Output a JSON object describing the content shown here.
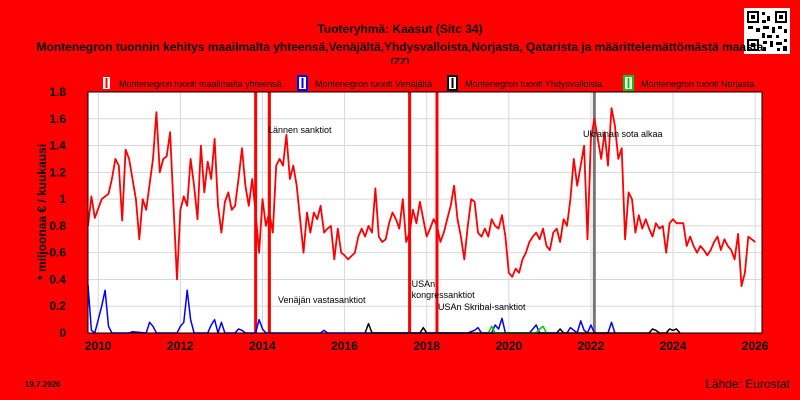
{
  "title": "Tuoteryhmä: Kaasut (Sitc 34)",
  "subtitle": "Montenegron tuonnin kehitys maailmalta yhteensä,Venäjältä,Yhdysvalloista,Norjasta, Qatarista ja määrittelemättömästä maasta",
  "subtitle_cont": "(ZZ)",
  "date": "19.7.2026",
  "source": "Lähde: Eurostat",
  "colors": {
    "background": "#ff0000",
    "plot": "#ffffff",
    "grid": "#d8d8d8"
  },
  "chart_data": {
    "type": "line",
    "ylabel": "* miljoonaa € / kuukausi",
    "xlabel": "",
    "ylim": [
      0,
      1.8
    ],
    "xlim": [
      "2009-10",
      "2026-03"
    ],
    "yticks": [
      "0",
      "0.2",
      "0.4",
      "0.6",
      "0.8",
      "1",
      "1.2",
      "1.4",
      "1.6",
      "1.8"
    ],
    "xticks": [
      "2010",
      "2012",
      "2014",
      "2016",
      "2018",
      "2020",
      "2022",
      "2024",
      "2026"
    ],
    "grid": true,
    "legend_position": "top",
    "series": [
      {
        "name": "Montenegron tuonti maailmalta yhteensä",
        "color": "#ff0000",
        "points": [
          [
            "2009-10",
            0.8
          ],
          [
            "2009-11",
            1.02
          ],
          [
            "2009-12",
            0.86
          ],
          [
            "2010-02",
            1.0
          ],
          [
            "2010-04",
            1.04
          ],
          [
            "2010-05",
            1.15
          ],
          [
            "2010-06",
            1.3
          ],
          [
            "2010-07",
            1.25
          ],
          [
            "2010-08",
            0.84
          ],
          [
            "2010-09",
            1.37
          ],
          [
            "2010-10",
            1.3
          ],
          [
            "2010-12",
            1.0
          ],
          [
            "2011-01",
            0.7
          ],
          [
            "2011-02",
            1.0
          ],
          [
            "2011-03",
            0.92
          ],
          [
            "2011-05",
            1.3
          ],
          [
            "2011-06",
            1.65
          ],
          [
            "2011-07",
            1.2
          ],
          [
            "2011-08",
            1.3
          ],
          [
            "2011-09",
            1.32
          ],
          [
            "2011-10",
            1.5
          ],
          [
            "2011-11",
            0.95
          ],
          [
            "2011-12",
            0.4
          ],
          [
            "2012-01",
            0.92
          ],
          [
            "2012-02",
            1.02
          ],
          [
            "2012-03",
            0.95
          ],
          [
            "2012-04",
            1.3
          ],
          [
            "2012-05",
            1.1
          ],
          [
            "2012-06",
            0.85
          ],
          [
            "2012-07",
            1.4
          ],
          [
            "2012-08",
            1.05
          ],
          [
            "2012-09",
            1.28
          ],
          [
            "2012-10",
            1.15
          ],
          [
            "2012-11",
            1.45
          ],
          [
            "2012-12",
            0.95
          ],
          [
            "2013-01",
            0.75
          ],
          [
            "2013-02",
            0.98
          ],
          [
            "2013-03",
            1.05
          ],
          [
            "2013-04",
            0.92
          ],
          [
            "2013-05",
            0.95
          ],
          [
            "2013-06",
            1.15
          ],
          [
            "2013-07",
            1.38
          ],
          [
            "2013-08",
            1.1
          ],
          [
            "2013-09",
            0.95
          ],
          [
            "2013-10",
            1.15
          ],
          [
            "2013-11",
            0.9
          ],
          [
            "2013-12",
            0.6
          ],
          [
            "2014-01",
            1.0
          ],
          [
            "2014-02",
            0.8
          ],
          [
            "2014-03",
            0.9
          ],
          [
            "2014-04",
            0.75
          ],
          [
            "2014-05",
            1.25
          ],
          [
            "2014-06",
            1.3
          ],
          [
            "2014-07",
            1.25
          ],
          [
            "2014-08",
            1.48
          ],
          [
            "2014-09",
            1.15
          ],
          [
            "2014-10",
            1.25
          ],
          [
            "2014-11",
            1.1
          ],
          [
            "2014-12",
            0.85
          ],
          [
            "2015-01",
            0.6
          ],
          [
            "2015-02",
            0.9
          ],
          [
            "2015-03",
            0.75
          ],
          [
            "2015-04",
            0.9
          ],
          [
            "2015-05",
            0.85
          ],
          [
            "2015-06",
            0.95
          ],
          [
            "2015-07",
            0.75
          ],
          [
            "2015-08",
            0.78
          ],
          [
            "2015-09",
            0.8
          ],
          [
            "2015-10",
            0.55
          ],
          [
            "2015-11",
            0.78
          ],
          [
            "2015-12",
            0.6
          ],
          [
            "2016-01",
            0.58
          ],
          [
            "2016-02",
            0.55
          ],
          [
            "2016-04",
            0.6
          ],
          [
            "2016-05",
            0.72
          ],
          [
            "2016-06",
            0.78
          ],
          [
            "2016-07",
            0.72
          ],
          [
            "2016-08",
            0.8
          ],
          [
            "2016-09",
            0.75
          ],
          [
            "2016-10",
            1.08
          ],
          [
            "2016-11",
            0.72
          ],
          [
            "2016-12",
            0.68
          ],
          [
            "2017-01",
            0.7
          ],
          [
            "2017-02",
            0.82
          ],
          [
            "2017-03",
            0.9
          ],
          [
            "2017-04",
            0.85
          ],
          [
            "2017-05",
            0.78
          ],
          [
            "2017-06",
            1.0
          ],
          [
            "2017-07",
            0.68
          ],
          [
            "2017-08",
            0.75
          ],
          [
            "2017-09",
            0.92
          ],
          [
            "2017-10",
            0.82
          ],
          [
            "2017-11",
            0.98
          ],
          [
            "2017-12",
            0.85
          ],
          [
            "2018-01",
            0.72
          ],
          [
            "2018-02",
            0.78
          ],
          [
            "2018-03",
            0.85
          ],
          [
            "2018-04",
            0.8
          ],
          [
            "2018-05",
            0.68
          ],
          [
            "2018-06",
            0.75
          ],
          [
            "2018-07",
            0.85
          ],
          [
            "2018-08",
            0.95
          ],
          [
            "2018-09",
            1.1
          ],
          [
            "2018-10",
            0.85
          ],
          [
            "2018-11",
            0.72
          ],
          [
            "2018-12",
            0.55
          ],
          [
            "2019-01",
            0.8
          ],
          [
            "2019-02",
            1.0
          ],
          [
            "2019-03",
            0.98
          ],
          [
            "2019-04",
            0.75
          ],
          [
            "2019-05",
            0.72
          ],
          [
            "2019-06",
            0.78
          ],
          [
            "2019-07",
            0.72
          ],
          [
            "2019-08",
            0.85
          ],
          [
            "2019-09",
            0.8
          ],
          [
            "2019-10",
            0.78
          ],
          [
            "2019-11",
            0.88
          ],
          [
            "2019-12",
            0.72
          ],
          [
            "2020-01",
            0.45
          ],
          [
            "2020-02",
            0.42
          ],
          [
            "2020-03",
            0.48
          ],
          [
            "2020-04",
            0.45
          ],
          [
            "2020-05",
            0.55
          ],
          [
            "2020-06",
            0.6
          ],
          [
            "2020-07",
            0.68
          ],
          [
            "2020-08",
            0.72
          ],
          [
            "2020-09",
            0.75
          ],
          [
            "2020-10",
            0.7
          ],
          [
            "2020-11",
            0.78
          ],
          [
            "2020-12",
            0.65
          ],
          [
            "2021-01",
            0.62
          ],
          [
            "2021-02",
            0.75
          ],
          [
            "2021-03",
            0.78
          ],
          [
            "2021-04",
            0.68
          ],
          [
            "2021-05",
            0.85
          ],
          [
            "2021-06",
            0.8
          ],
          [
            "2021-07",
            1.0
          ],
          [
            "2021-08",
            1.3
          ],
          [
            "2021-09",
            1.1
          ],
          [
            "2021-10",
            1.25
          ],
          [
            "2021-11",
            1.4
          ],
          [
            "2021-12",
            0.7
          ],
          [
            "2022-01",
            1.45
          ],
          [
            "2022-02",
            1.6
          ],
          [
            "2022-03",
            1.45
          ],
          [
            "2022-04",
            1.3
          ],
          [
            "2022-05",
            1.5
          ],
          [
            "2022-06",
            1.25
          ],
          [
            "2022-07",
            1.68
          ],
          [
            "2022-08",
            1.55
          ],
          [
            "2022-09",
            1.3
          ],
          [
            "2022-10",
            1.38
          ],
          [
            "2022-11",
            0.7
          ],
          [
            "2022-12",
            1.05
          ],
          [
            "2023-01",
            1.0
          ],
          [
            "2023-02",
            0.75
          ],
          [
            "2023-03",
            0.88
          ],
          [
            "2023-04",
            0.78
          ],
          [
            "2023-05",
            0.85
          ],
          [
            "2023-06",
            0.78
          ],
          [
            "2023-07",
            0.72
          ],
          [
            "2023-08",
            0.82
          ],
          [
            "2023-09",
            0.78
          ],
          [
            "2023-10",
            0.8
          ],
          [
            "2023-11",
            0.6
          ],
          [
            "2023-12",
            0.82
          ],
          [
            "2024-01",
            0.85
          ],
          [
            "2024-02",
            0.82
          ],
          [
            "2024-04",
            0.82
          ],
          [
            "2024-05",
            0.65
          ],
          [
            "2024-06",
            0.72
          ],
          [
            "2024-07",
            0.65
          ],
          [
            "2024-08",
            0.6
          ],
          [
            "2024-09",
            0.65
          ],
          [
            "2024-10",
            0.62
          ],
          [
            "2024-11",
            0.58
          ],
          [
            "2024-12",
            0.62
          ],
          [
            "2025-01",
            0.68
          ],
          [
            "2025-02",
            0.72
          ],
          [
            "2025-03",
            0.62
          ],
          [
            "2025-04",
            0.7
          ],
          [
            "2025-05",
            0.65
          ],
          [
            "2025-06",
            0.62
          ],
          [
            "2025-07",
            0.55
          ],
          [
            "2025-08",
            0.74
          ],
          [
            "2025-09",
            0.35
          ],
          [
            "2025-10",
            0.45
          ],
          [
            "2025-11",
            0.72
          ],
          [
            "2025-12",
            0.7
          ],
          [
            "2026-01",
            0.68
          ]
        ]
      },
      {
        "name": "Montenegron tuonti Venäjältä",
        "color": "#0000ff",
        "points": [
          [
            "2009-10",
            0.36
          ],
          [
            "2009-11",
            0.02
          ],
          [
            "2009-12",
            0.0
          ],
          [
            "2010-02",
            0.2
          ],
          [
            "2010-03",
            0.32
          ],
          [
            "2010-04",
            0.05
          ],
          [
            "2010-05",
            0.0
          ],
          [
            "2010-10",
            0.0
          ],
          [
            "2010-11",
            0.01
          ],
          [
            "2011-03",
            0.0
          ],
          [
            "2011-04",
            0.08
          ],
          [
            "2011-05",
            0.05
          ],
          [
            "2011-06",
            0.0
          ],
          [
            "2011-12",
            0.0
          ],
          [
            "2012-01",
            0.05
          ],
          [
            "2012-02",
            0.08
          ],
          [
            "2012-03",
            0.32
          ],
          [
            "2012-04",
            0.1
          ],
          [
            "2012-05",
            0.0
          ],
          [
            "2012-09",
            0.0
          ],
          [
            "2012-10",
            0.06
          ],
          [
            "2012-11",
            0.1
          ],
          [
            "2012-12",
            0.0
          ],
          [
            "2013-01",
            0.08
          ],
          [
            "2013-02",
            0.0
          ],
          [
            "2013-05",
            0.0
          ],
          [
            "2013-06",
            0.03
          ],
          [
            "2013-07",
            0.02
          ],
          [
            "2013-08",
            0.0
          ],
          [
            "2013-11",
            0.0
          ],
          [
            "2013-12",
            0.1
          ],
          [
            "2014-01",
            0.03
          ],
          [
            "2014-02",
            0.0
          ],
          [
            "2015-06",
            0.0
          ],
          [
            "2015-07",
            0.02
          ],
          [
            "2015-08",
            0.0
          ],
          [
            "2019-01",
            0.0
          ],
          [
            "2019-03",
            0.02
          ],
          [
            "2019-04",
            0.04
          ],
          [
            "2019-05",
            0.0
          ],
          [
            "2019-08",
            0.0
          ],
          [
            "2019-09",
            0.06
          ],
          [
            "2019-10",
            0.03
          ],
          [
            "2019-11",
            0.11
          ],
          [
            "2019-12",
            0.0
          ],
          [
            "2020-07",
            0.0
          ],
          [
            "2020-08",
            0.03
          ],
          [
            "2020-09",
            0.06
          ],
          [
            "2020-10",
            0.0
          ],
          [
            "2021-06",
            0.0
          ],
          [
            "2021-07",
            0.04
          ],
          [
            "2021-08",
            0.02
          ],
          [
            "2021-09",
            0.0
          ],
          [
            "2021-10",
            0.09
          ],
          [
            "2021-11",
            0.02
          ],
          [
            "2021-12",
            0.0
          ],
          [
            "2022-01",
            0.06
          ],
          [
            "2022-02",
            0.0
          ],
          [
            "2022-06",
            0.0
          ],
          [
            "2022-07",
            0.08
          ],
          [
            "2022-08",
            0.0
          ]
        ]
      },
      {
        "name": "Montenegron tuonti Yhdysvalloista",
        "color": "#000000",
        "points": [
          [
            "2016-07",
            0.0
          ],
          [
            "2016-08",
            0.07
          ],
          [
            "2016-09",
            0.0
          ],
          [
            "2017-11",
            0.0
          ],
          [
            "2017-12",
            0.04
          ],
          [
            "2018-01",
            0.0
          ],
          [
            "2021-03",
            0.0
          ],
          [
            "2021-04",
            0.03
          ],
          [
            "2021-05",
            0.0
          ],
          [
            "2023-06",
            0.0
          ],
          [
            "2023-07",
            0.03
          ],
          [
            "2023-08",
            0.02
          ],
          [
            "2023-09",
            0.0
          ],
          [
            "2023-11",
            0.0
          ],
          [
            "2023-12",
            0.03
          ],
          [
            "2024-01",
            0.02
          ],
          [
            "2024-02",
            0.03
          ],
          [
            "2024-03",
            0.0
          ]
        ]
      },
      {
        "name": "Montenegron tuonti Norjasta",
        "color": "#00cc00",
        "points": [
          [
            "2019-07",
            0.0
          ],
          [
            "2019-08",
            0.05
          ],
          [
            "2019-09",
            0.0
          ],
          [
            "2020-09",
            0.0
          ],
          [
            "2020-10",
            0.03
          ],
          [
            "2020-11",
            0.05
          ],
          [
            "2020-12",
            0.0
          ]
        ]
      }
    ],
    "events": [
      {
        "date": "2013-11",
        "label": "",
        "color": "#ff0000"
      },
      {
        "date": "2014-03",
        "label": "Venäjän vastasanktiot",
        "color": "#00cc00"
      },
      {
        "date": "2014-03",
        "label": "Lännen sanktiot",
        "color": "#ff0000"
      },
      {
        "date": "2017-08",
        "label": "USAn kongressanktiot",
        "color": "#ff0000"
      },
      {
        "date": "2018-04",
        "label": "USAn Skribal-sanktiot",
        "color": "#ff0000"
      },
      {
        "date": "2022-02",
        "label": "Ukrainan sota alkaa",
        "color": "#777777"
      }
    ]
  }
}
